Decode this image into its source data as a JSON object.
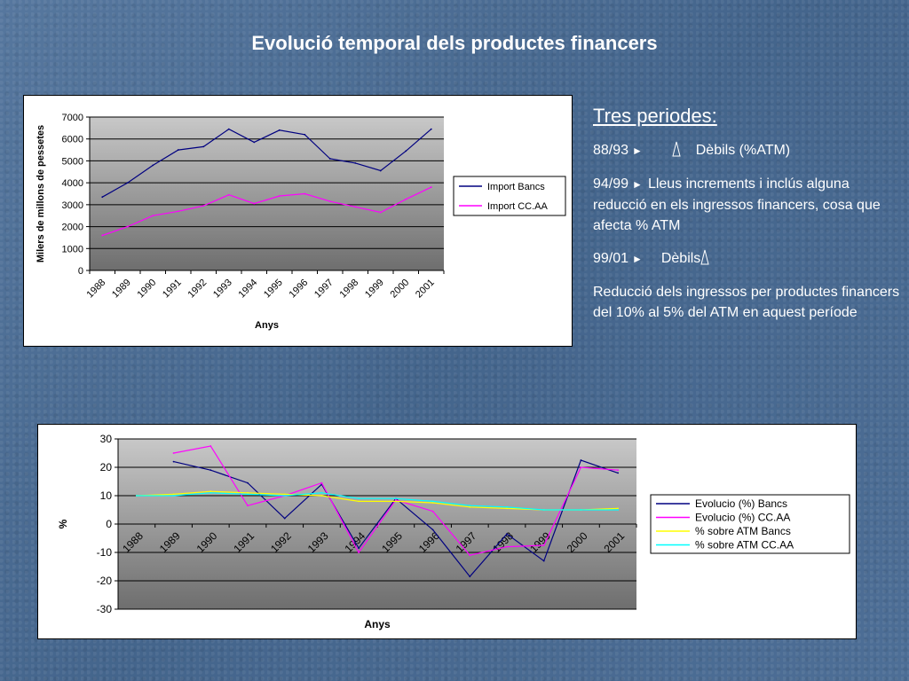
{
  "title": "Evolució temporal dels productes financers",
  "side": {
    "heading": "Tres  periodes:",
    "p1_label": "88/93",
    "p1_text": "Dèbils (%ATM)",
    "p2_label": "94/99",
    "p2_text": "Lleus increments i inclús alguna reducció en els ingressos financers, cosa que afecta % ATM",
    "p3_label": "99/01",
    "p3_text": "Dèbils",
    "p4_text": "Reducció dels ingressos per productes financers del 10% al 5% del ATM en aquest període"
  },
  "chart_data": [
    {
      "type": "line",
      "categories": [
        "1988",
        "1989",
        "1990",
        "1991",
        "1992",
        "1993",
        "1994",
        "1995",
        "1996",
        "1997",
        "1998",
        "1999",
        "2000",
        "2001"
      ],
      "xlabel": "Anys",
      "ylabel": "Milers de millons de pessetes",
      "ylim": [
        0,
        7000
      ],
      "yticks": [
        0,
        1000,
        2000,
        3000,
        4000,
        5000,
        6000,
        7000
      ],
      "legend": "right",
      "series": [
        {
          "name": "Import  Bancs",
          "color": "#000080",
          "values": [
            3350,
            4000,
            4800,
            5500,
            5650,
            6450,
            5850,
            6400,
            6200,
            5100,
            4900,
            4550,
            5450,
            6450
          ]
        },
        {
          "name": "Import  CC.AA",
          "color": "#ff00ff",
          "values": [
            1600,
            2000,
            2500,
            2700,
            2950,
            3450,
            3050,
            3400,
            3500,
            3150,
            2900,
            2650,
            3250,
            3800
          ]
        }
      ]
    },
    {
      "type": "line",
      "categories": [
        "1988",
        "1989",
        "1990",
        "1991",
        "1992",
        "1993",
        "1994",
        "1995",
        "1996",
        "1997",
        "1998",
        "1999",
        "2000",
        "2001"
      ],
      "xlabel": "Anys",
      "ylabel": "%",
      "ylim": [
        -30,
        30
      ],
      "yticks": [
        -30,
        -20,
        -10,
        0,
        10,
        20,
        30
      ],
      "legend": "right",
      "series": [
        {
          "name": "Evolucio (%) Bancs",
          "color": "#000080",
          "values": [
            null,
            22,
            19,
            14.5,
            2,
            14,
            -8.5,
            9,
            -2,
            -18.5,
            -3.5,
            -13,
            22.5,
            18
          ]
        },
        {
          "name": "Evolucio (%) CC.AA",
          "color": "#ff00ff",
          "values": [
            null,
            25,
            27.5,
            6.5,
            10,
            14.5,
            -10,
            8.5,
            4.5,
            -11,
            -8,
            -7.5,
            20,
            19
          ]
        },
        {
          "name": "% sobre ATM Bancs",
          "color": "#ffff00",
          "values": [
            10,
            10.5,
            11.5,
            11,
            10.5,
            10,
            8,
            8,
            7.5,
            6,
            5.5,
            5,
            5,
            5.5
          ]
        },
        {
          "name": "% sobre ATM CC.AA",
          "color": "#00ffff",
          "values": [
            10,
            10,
            11,
            10.5,
            10,
            11,
            9,
            9,
            8,
            6.5,
            6,
            5,
            5,
            5
          ]
        }
      ]
    }
  ]
}
